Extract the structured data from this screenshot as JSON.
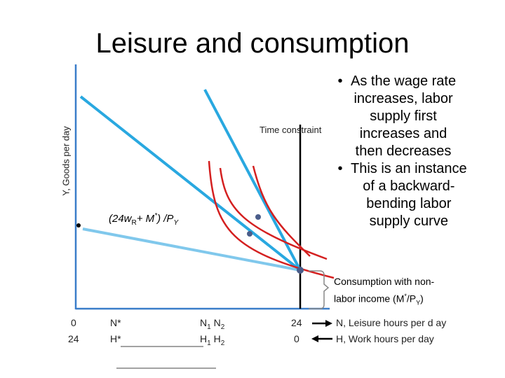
{
  "title": "Leisure and consumption",
  "y_axis_label": "Y, Goods per day",
  "time_constraint_label": "Time constraint",
  "budget_intercept_label": {
    "main": "(24w",
    "sub_r": "R",
    "plus": "+ M",
    "star": "*",
    "close": ") /P",
    "sub_y": "Y"
  },
  "bullets": [
    [
      "As the wage rate",
      "increases, labor",
      "supply first",
      "increases and",
      "then decreases"
    ],
    [
      "This is an instance",
      "of a backward-",
      "bending labor",
      "supply curve"
    ]
  ],
  "bullet_symbol": "•",
  "nonlabor": {
    "line1": "Consumption with non-",
    "line2_pre": "labor income (M",
    "line2_star": "*",
    "line2_mid": "/P",
    "line2_sub": "Y",
    "line2_post": ")"
  },
  "ticks": {
    "zero": "0",
    "twenty_four": "24",
    "n_star": "N*",
    "h_star": "H*",
    "n1_base": "N",
    "n1_sub": "1",
    "n2_base": "N",
    "n2_sub": "2",
    "h1_base": "H",
    "h1_sub": "1",
    "h2_base": "H",
    "h2_sub": "2",
    "n_axis_label": "N, Leisure hours per d ay",
    "h_axis_label": "H, Work hours per day"
  },
  "colors": {
    "axis": "#3a7dc9",
    "budget_line": "#29a8e0",
    "budget_line_light": "#80c8ec",
    "indifference": "#d42020",
    "point": "#4a5d8a",
    "time_constraint": "#000000",
    "brace": "#888888"
  }
}
